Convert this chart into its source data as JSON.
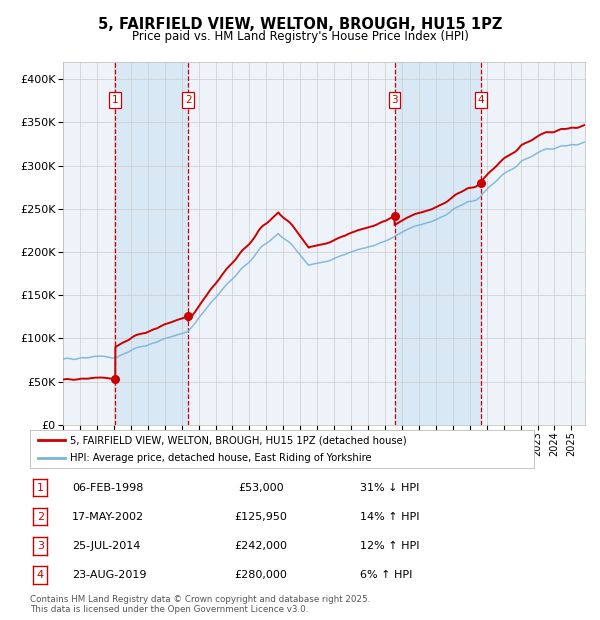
{
  "title": "5, FAIRFIELD VIEW, WELTON, BROUGH, HU15 1PZ",
  "subtitle": "Price paid vs. HM Land Registry's House Price Index (HPI)",
  "ylim": [
    0,
    420000
  ],
  "yticks": [
    0,
    50000,
    100000,
    150000,
    200000,
    250000,
    300000,
    350000,
    400000
  ],
  "ytick_labels": [
    "£0",
    "£50K",
    "£100K",
    "£150K",
    "£200K",
    "£250K",
    "£300K",
    "£350K",
    "£400K"
  ],
  "xlim_start": 1995.0,
  "xlim_end": 2025.8,
  "sale_dates": [
    1998.09,
    2002.38,
    2014.56,
    2019.64
  ],
  "sale_prices": [
    53000,
    125950,
    242000,
    280000
  ],
  "sale_labels": [
    "1",
    "2",
    "3",
    "4"
  ],
  "hpi_color": "#7ab4d8",
  "price_color": "#cc0000",
  "shade_color": "#d8e8f5",
  "vline_color": "#cc0000",
  "grid_color": "#cccccc",
  "background_color": "#ffffff",
  "plot_bg_color": "#eef3fa",
  "legend_line1": "5, FAIRFIELD VIEW, WELTON, BROUGH, HU15 1PZ (detached house)",
  "legend_line2": "HPI: Average price, detached house, East Riding of Yorkshire",
  "table_rows": [
    {
      "num": "1",
      "date": "06-FEB-1998",
      "price": "£53,000",
      "hpi": "31% ↓ HPI"
    },
    {
      "num": "2",
      "date": "17-MAY-2002",
      "price": "£125,950",
      "hpi": "14% ↑ HPI"
    },
    {
      "num": "3",
      "date": "25-JUL-2014",
      "price": "£242,000",
      "hpi": "12% ↑ HPI"
    },
    {
      "num": "4",
      "date": "23-AUG-2019",
      "price": "£280,000",
      "hpi": "6% ↑ HPI"
    }
  ],
  "footer": "Contains HM Land Registry data © Crown copyright and database right 2025.\nThis data is licensed under the Open Government Licence v3.0."
}
